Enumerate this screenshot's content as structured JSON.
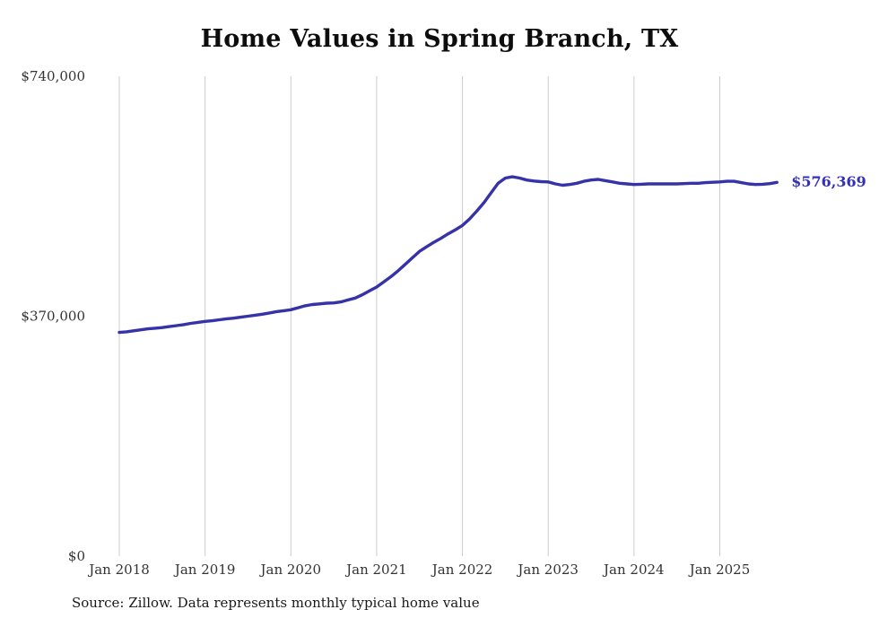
{
  "title": "Home Values in Spring Branch, TX",
  "latest_value_label": "$576,369",
  "source_note": "Source: Zillow. Data represents monthly typical home value",
  "colors": {
    "line": "#3632a8",
    "grid": "#cccccc",
    "axis_text": "#333333",
    "latest_label": "#3330b8"
  },
  "chart_data": {
    "type": "line",
    "title": "Home Values in Spring Branch, TX",
    "xlabel": "",
    "ylabel": "",
    "ylim": [
      0,
      740000
    ],
    "grid": "vertical-only",
    "legend": "none",
    "y_ticks": [
      {
        "value": 0,
        "label": "$0"
      },
      {
        "value": 370000,
        "label": "$370,000"
      },
      {
        "value": 740000,
        "label": "$740,000"
      }
    ],
    "x_ticks": [
      {
        "x": "2018-01",
        "label": "Jan 2018"
      },
      {
        "x": "2019-01",
        "label": "Jan 2019"
      },
      {
        "x": "2020-01",
        "label": "Jan 2020"
      },
      {
        "x": "2021-01",
        "label": "Jan 2021"
      },
      {
        "x": "2022-01",
        "label": "Jan 2022"
      },
      {
        "x": "2023-01",
        "label": "Jan 2023"
      },
      {
        "x": "2024-01",
        "label": "Jan 2024"
      },
      {
        "x": "2025-01",
        "label": "Jan 2025"
      }
    ],
    "series": [
      {
        "name": "Monthly typical home value",
        "end_label": "$576,369",
        "x": [
          "2018-01",
          "2018-02",
          "2018-03",
          "2018-04",
          "2018-05",
          "2018-06",
          "2018-07",
          "2018-08",
          "2018-09",
          "2018-10",
          "2018-11",
          "2018-12",
          "2019-01",
          "2019-02",
          "2019-03",
          "2019-04",
          "2019-05",
          "2019-06",
          "2019-07",
          "2019-08",
          "2019-09",
          "2019-10",
          "2019-11",
          "2019-12",
          "2020-01",
          "2020-02",
          "2020-03",
          "2020-04",
          "2020-05",
          "2020-06",
          "2020-07",
          "2020-08",
          "2020-09",
          "2020-10",
          "2020-11",
          "2020-12",
          "2021-01",
          "2021-02",
          "2021-03",
          "2021-04",
          "2021-05",
          "2021-06",
          "2021-07",
          "2021-08",
          "2021-09",
          "2021-10",
          "2021-11",
          "2021-12",
          "2022-01",
          "2022-02",
          "2022-03",
          "2022-04",
          "2022-05",
          "2022-06",
          "2022-07",
          "2022-08",
          "2022-09",
          "2022-10",
          "2022-11",
          "2022-12",
          "2023-01",
          "2023-02",
          "2023-03",
          "2023-04",
          "2023-05",
          "2023-06",
          "2023-07",
          "2023-08",
          "2023-09",
          "2023-10",
          "2023-11",
          "2023-12",
          "2024-01",
          "2024-02",
          "2024-03",
          "2024-04",
          "2024-05",
          "2024-06",
          "2024-07",
          "2024-08",
          "2024-09",
          "2024-10",
          "2024-11",
          "2024-12",
          "2025-01",
          "2025-02",
          "2025-03",
          "2025-04",
          "2025-05",
          "2025-06",
          "2025-07",
          "2025-08",
          "2025-09"
        ],
        "values": [
          345000,
          346000,
          347500,
          349000,
          350500,
          351500,
          352500,
          354000,
          355500,
          357000,
          359000,
          360500,
          362000,
          363000,
          364500,
          366000,
          367000,
          368500,
          370000,
          371500,
          373000,
          375000,
          377000,
          378500,
          380000,
          383000,
          386000,
          388000,
          389000,
          390000,
          390500,
          392000,
          395000,
          398000,
          403000,
          409000,
          415000,
          423000,
          431000,
          440000,
          450000,
          460000,
          470000,
          477000,
          484000,
          490000,
          497000,
          503000,
          510000,
          520000,
          532000,
          545000,
          560000,
          575000,
          583000,
          585000,
          583000,
          580000,
          578500,
          577500,
          577000,
          574000,
          572000,
          573000,
          575000,
          578000,
          580000,
          581000,
          579000,
          577000,
          575000,
          574000,
          573000,
          573500,
          574000,
          574000,
          574000,
          574000,
          574000,
          574500,
          575000,
          575000,
          576000,
          576500,
          577000,
          578000,
          578000,
          576000,
          574000,
          573000,
          573500,
          574500,
          576369
        ]
      }
    ]
  }
}
